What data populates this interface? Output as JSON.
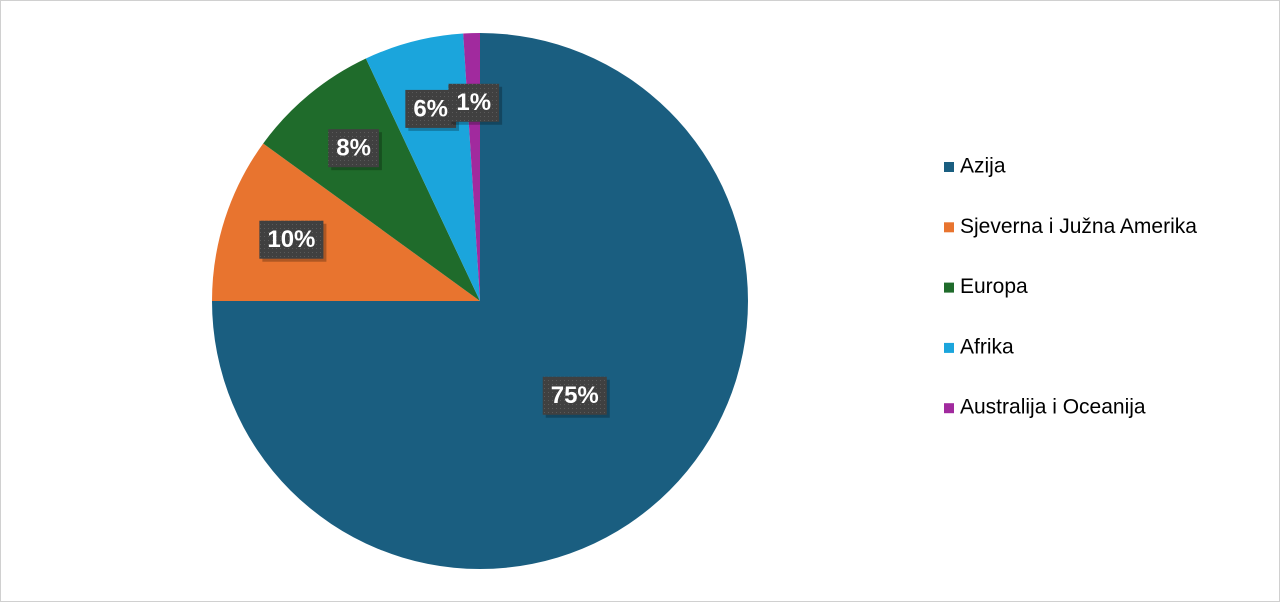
{
  "chart_data": {
    "type": "pie",
    "categories": [
      "Azija",
      "Sjeverna i Južna Amerika",
      "Europa",
      "Afrika",
      "Australija i Oceanija"
    ],
    "values": [
      75,
      10,
      8,
      6,
      1
    ],
    "value_labels": [
      "75%",
      "10%",
      "8%",
      "6%",
      "1%"
    ],
    "colors": [
      "#1a5e80",
      "#e8742f",
      "#1f6b2b",
      "#1ba5dc",
      "#a12a9e"
    ],
    "legend": "right"
  }
}
